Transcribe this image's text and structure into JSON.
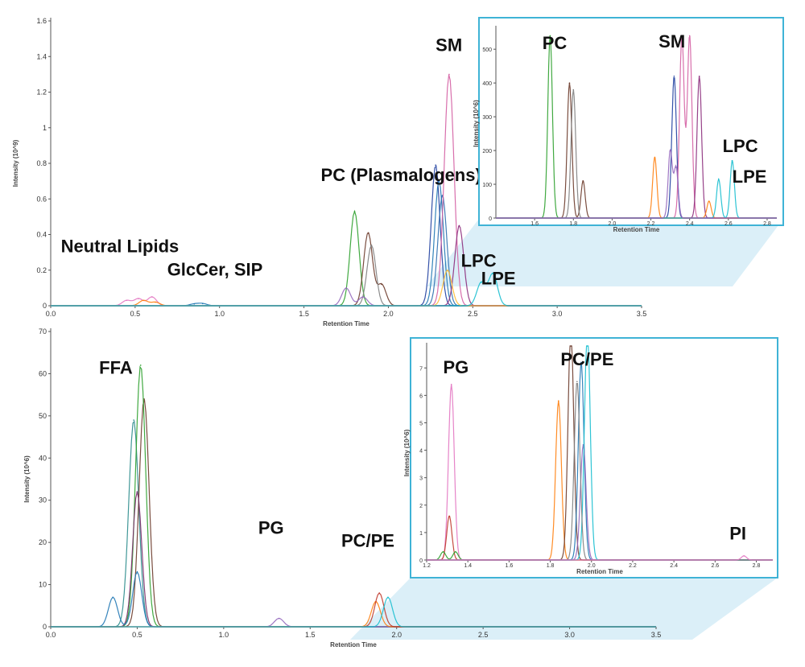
{
  "chart_data": [
    {
      "type": "line",
      "panel": "top",
      "xlabel": "Retention Time",
      "ylabel": "Intensity (10^9)",
      "xlim": [
        0,
        3.5
      ],
      "ylim": [
        0,
        1.6
      ],
      "x_ticks": [
        "0.0",
        "0.5",
        "1.0",
        "1.5",
        "2.0",
        "2.5",
        "3.0",
        "3.5"
      ],
      "y_ticks": [
        "0",
        "0.2",
        "0.4",
        "0.6",
        "0.8",
        "1",
        "1.2",
        "1.4",
        "1.6"
      ],
      "annotations": [
        {
          "text": "Neutral Lipids",
          "x": 0.06,
          "y": 0.3
        },
        {
          "text": "GlcCer, SIP",
          "x": 0.69,
          "y": 0.17
        },
        {
          "text": "PC (Plasmalogens)",
          "x": 1.6,
          "y": 0.7
        },
        {
          "text": "SM",
          "x": 2.28,
          "y": 1.43
        },
        {
          "text": "LPC",
          "x": 2.43,
          "y": 0.22
        },
        {
          "text": "LPE",
          "x": 2.55,
          "y": 0.12
        }
      ],
      "series": [
        {
          "color": "#e377c2",
          "peaks": [
            [
              0.45,
              0.03
            ],
            [
              0.52,
              0.04
            ],
            [
              0.6,
              0.05
            ]
          ]
        },
        {
          "color": "#ff7f0e",
          "peaks": [
            [
              0.55,
              0.03
            ],
            [
              0.62,
              0.02
            ]
          ]
        },
        {
          "color": "#1f77b4",
          "peaks": [
            [
              0.85,
              0.01
            ],
            [
              0.9,
              0.012
            ]
          ]
        },
        {
          "color": "#2ca02c",
          "peaks": [
            [
              1.8,
              0.53
            ]
          ]
        },
        {
          "color": "#6b3a2a",
          "peaks": [
            [
              1.88,
              0.41
            ],
            [
              1.96,
              0.12
            ]
          ]
        },
        {
          "color": "#7f7f7f",
          "peaks": [
            [
              1.9,
              0.34
            ]
          ]
        },
        {
          "color": "#9467bd",
          "peaks": [
            [
              1.75,
              0.1
            ],
            [
              1.85,
              0.05
            ]
          ]
        },
        {
          "color": "#1f3fa0",
          "peaks": [
            [
              2.28,
              0.79
            ]
          ]
        },
        {
          "color": "#1f77b4",
          "peaks": [
            [
              2.3,
              0.7
            ]
          ]
        },
        {
          "color": "#2f6fb0",
          "peaks": [
            [
              2.32,
              0.62
            ]
          ]
        },
        {
          "color": "#d45fa3",
          "peaks": [
            [
              2.36,
              1.3
            ]
          ]
        },
        {
          "color": "#8c2d7c",
          "peaks": [
            [
              2.42,
              0.45
            ]
          ]
        },
        {
          "color": "#ffbb33",
          "peaks": [
            [
              2.35,
              0.2
            ]
          ]
        },
        {
          "color": "#17becf",
          "peaks": [
            [
              2.55,
              0.13
            ],
            [
              2.62,
              0.18
            ]
          ]
        }
      ],
      "inset": {
        "xlabel": "Retention Time",
        "ylabel": "Intensity (10^6)",
        "xlim": [
          1.4,
          2.85
        ],
        "ylim": [
          0,
          560
        ],
        "x_ticks": [
          "1.6",
          "1.8",
          "2.0",
          "2.2",
          "2.4",
          "2.6",
          "2.8"
        ],
        "y_ticks": [
          "0",
          "100",
          "200",
          "300",
          "400",
          "500"
        ],
        "annotations": [
          {
            "text": "PC",
            "x": 1.64,
            "y": 500
          },
          {
            "text": "SM",
            "x": 2.24,
            "y": 505
          },
          {
            "text": "LPC",
            "x": 2.57,
            "y": 195
          },
          {
            "text": "LPE",
            "x": 2.62,
            "y": 105
          }
        ],
        "series": [
          {
            "color": "#2ca02c",
            "peaks": [
              [
                1.68,
                540
              ]
            ]
          },
          {
            "color": "#6b3a2a",
            "peaks": [
              [
                1.78,
                400
              ],
              [
                1.85,
                110
              ]
            ]
          },
          {
            "color": "#7f7f7f",
            "peaks": [
              [
                1.8,
                380
              ]
            ]
          },
          {
            "color": "#1f3fa0",
            "peaks": [
              [
                2.32,
                420
              ]
            ]
          },
          {
            "color": "#d45fa3",
            "peaks": [
              [
                2.36,
                540
              ],
              [
                2.4,
                540
              ]
            ]
          },
          {
            "color": "#8c2d7c",
            "peaks": [
              [
                2.45,
                420
              ]
            ]
          },
          {
            "color": "#ff7f0e",
            "peaks": [
              [
                2.22,
                180
              ],
              [
                2.5,
                50
              ]
            ]
          },
          {
            "color": "#17becf",
            "peaks": [
              [
                2.55,
                115
              ],
              [
                2.62,
                170
              ]
            ]
          },
          {
            "color": "#9467bd",
            "peaks": [
              [
                2.33,
                150
              ],
              [
                2.3,
                200
              ]
            ]
          }
        ]
      }
    },
    {
      "type": "line",
      "panel": "bottom",
      "xlabel": "Retention Time",
      "ylabel": "Intensity (10^6)",
      "xlim": [
        0,
        3.5
      ],
      "ylim": [
        0,
        70
      ],
      "x_ticks": [
        "0.0",
        "0.5",
        "1.0",
        "1.5",
        "2.0",
        "2.5",
        "3.0",
        "3.5"
      ],
      "y_ticks": [
        "0",
        "10",
        "20",
        "30",
        "40",
        "50",
        "60",
        "70"
      ],
      "annotations": [
        {
          "text": "FFA",
          "x": 0.28,
          "y": 60
        },
        {
          "text": "PG",
          "x": 1.2,
          "y": 22
        },
        {
          "text": "PC/PE",
          "x": 1.68,
          "y": 19
        }
      ],
      "series": [
        {
          "color": "#2b8c8c",
          "peaks": [
            [
              0.48,
              49
            ]
          ]
        },
        {
          "color": "#6b3a2a",
          "peaks": [
            [
              0.54,
              54
            ]
          ]
        },
        {
          "color": "#2ca02c",
          "peaks": [
            [
              0.52,
              62
            ]
          ]
        },
        {
          "color": "#7b2d6a",
          "peaks": [
            [
              0.5,
              32
            ]
          ]
        },
        {
          "color": "#1f77b4",
          "peaks": [
            [
              0.36,
              7
            ],
            [
              0.5,
              13
            ]
          ]
        },
        {
          "color": "#9467bd",
          "peaks": [
            [
              1.32,
              2
            ]
          ]
        },
        {
          "color": "#ff7f0e",
          "peaks": [
            [
              1.88,
              6
            ]
          ]
        },
        {
          "color": "#c0392b",
          "peaks": [
            [
              1.9,
              8
            ]
          ]
        },
        {
          "color": "#17becf",
          "peaks": [
            [
              1.95,
              7
            ]
          ]
        }
      ],
      "inset": {
        "xlabel": "Retention Time",
        "ylabel": "Intensity (10^6)",
        "xlim": [
          1.2,
          2.88
        ],
        "ylim": [
          0,
          7.8
        ],
        "x_ticks": [
          "1.2",
          "1.4",
          "1.6",
          "1.8",
          "2.0",
          "2.2",
          "2.4",
          "2.6",
          "2.8"
        ],
        "y_ticks": [
          "0",
          "1",
          "2",
          "3",
          "4",
          "5",
          "6",
          "7"
        ],
        "annotations": [
          {
            "text": "PG",
            "x": 1.28,
            "y": 6.8
          },
          {
            "text": "PC/PE",
            "x": 1.85,
            "y": 7.1
          },
          {
            "text": "PI",
            "x": 2.67,
            "y": 0.75
          }
        ],
        "series": [
          {
            "color": "#e377c2",
            "peaks": [
              [
                1.32,
                6.4
              ]
            ]
          },
          {
            "color": "#c0392b",
            "peaks": [
              [
                1.31,
                1.6
              ]
            ]
          },
          {
            "color": "#2ca02c",
            "peaks": [
              [
                1.28,
                0.3
              ],
              [
                1.34,
                0.3
              ]
            ]
          },
          {
            "color": "#ff7f0e",
            "peaks": [
              [
                1.84,
                5.8
              ]
            ]
          },
          {
            "color": "#6b3a2a",
            "peaks": [
              [
                1.9,
                8.5
              ]
            ]
          },
          {
            "color": "#1f77b4",
            "peaks": [
              [
                1.95,
                7.2
              ]
            ]
          },
          {
            "color": "#9467bd",
            "peaks": [
              [
                1.96,
                4.2
              ]
            ]
          },
          {
            "color": "#17becf",
            "peaks": [
              [
                1.98,
                8.5
              ]
            ]
          },
          {
            "color": "#7f7f7f",
            "peaks": [
              [
                1.93,
                6.5
              ]
            ]
          },
          {
            "color": "#e377c2",
            "peaks": [
              [
                2.74,
                0.15
              ]
            ]
          }
        ]
      }
    }
  ]
}
